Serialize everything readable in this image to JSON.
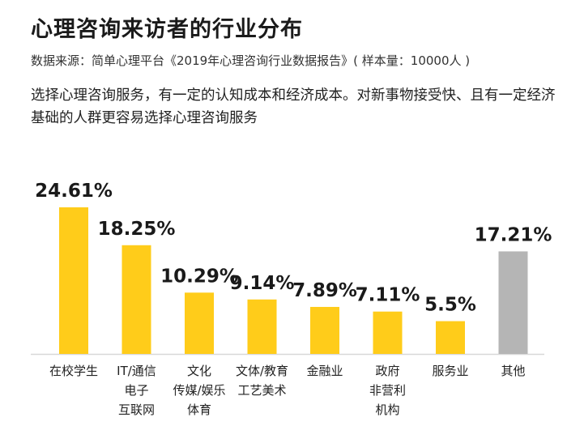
{
  "title": "心理咨询来访者的行业分布",
  "source": "数据来源：简单心理平台《2019年心理咨询行业数据报告》( 样本量：10000人 )",
  "description": "选择心理咨询服务，有一定的认知成本和经济成本。对新事物接受快、且有一定经济基础的人群更容易选择心理咨询服务",
  "colors": {
    "highlight": "#FFCC1A",
    "other": "#B5B5B5",
    "axis": "#D8D8D8"
  },
  "chart_data": {
    "type": "bar",
    "categories": [
      [
        "在校学生"
      ],
      [
        "IT/通信",
        "电子",
        "互联网"
      ],
      [
        "文化",
        "传媒/娱乐",
        "体育"
      ],
      [
        "文体/教育",
        "工艺美术"
      ],
      [
        "金融业"
      ],
      [
        "政府",
        "非营利",
        "机构"
      ],
      [
        "服务业"
      ],
      [
        "其他"
      ]
    ],
    "values": [
      24.61,
      18.25,
      10.29,
      9.14,
      7.89,
      7.11,
      5.5,
      17.21
    ],
    "value_labels": [
      "24.61%",
      "18.25%",
      "10.29%",
      "9.14%",
      "7.89%",
      "7.11%",
      "5.5%",
      "17.21%"
    ],
    "bar_colors": [
      "highlight",
      "highlight",
      "highlight",
      "highlight",
      "highlight",
      "highlight",
      "highlight",
      "other"
    ],
    "xlabel": "",
    "ylabel": "",
    "ylim": [
      0,
      26
    ]
  }
}
